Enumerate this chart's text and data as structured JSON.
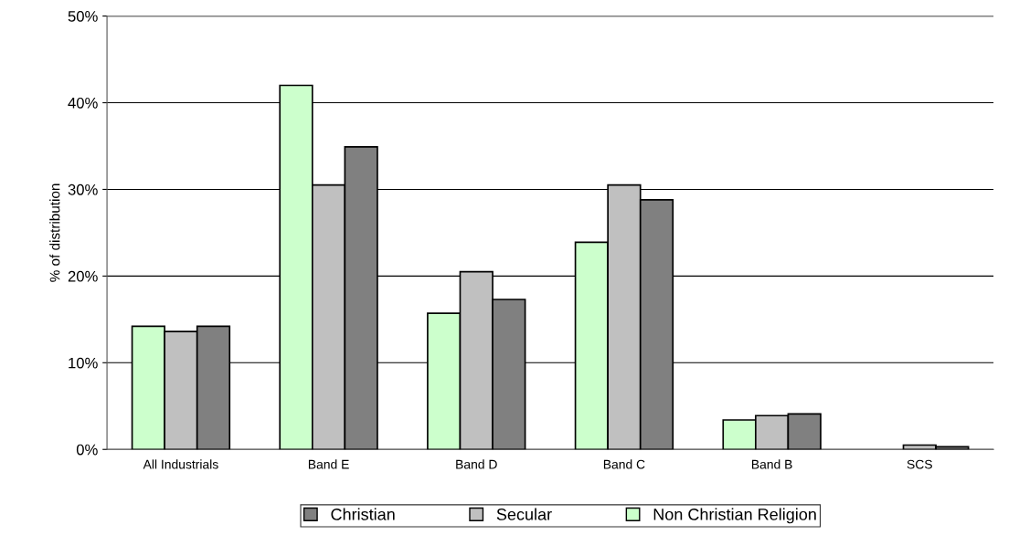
{
  "chart_data": {
    "type": "bar",
    "ylabel": "% of distribution",
    "categories": [
      "All Industrials",
      "Band E",
      "Band D",
      "Band C",
      "Band B",
      "SCS"
    ],
    "series": [
      {
        "name": "Non Christian Religion",
        "color": "#ccffcc",
        "values": [
          14.2,
          42.0,
          15.7,
          23.9,
          3.4,
          0
        ]
      },
      {
        "name": "Secular",
        "color": "#c0c0c0",
        "values": [
          13.6,
          30.5,
          20.5,
          30.5,
          3.9,
          0.5
        ]
      },
      {
        "name": "Christian",
        "color": "#808080",
        "values": [
          14.2,
          34.9,
          17.3,
          28.8,
          4.1,
          0.3
        ]
      }
    ],
    "ylim": [
      0,
      50
    ],
    "yticks": [
      {
        "value": 0,
        "label": "0%"
      },
      {
        "value": 10,
        "label": "10%"
      },
      {
        "value": 20,
        "label": "20%"
      },
      {
        "value": 30,
        "label": "30%"
      },
      {
        "value": 40,
        "label": "40%"
      },
      {
        "value": 50,
        "label": "50%"
      }
    ],
    "grid": "y",
    "legend": "bottom"
  }
}
